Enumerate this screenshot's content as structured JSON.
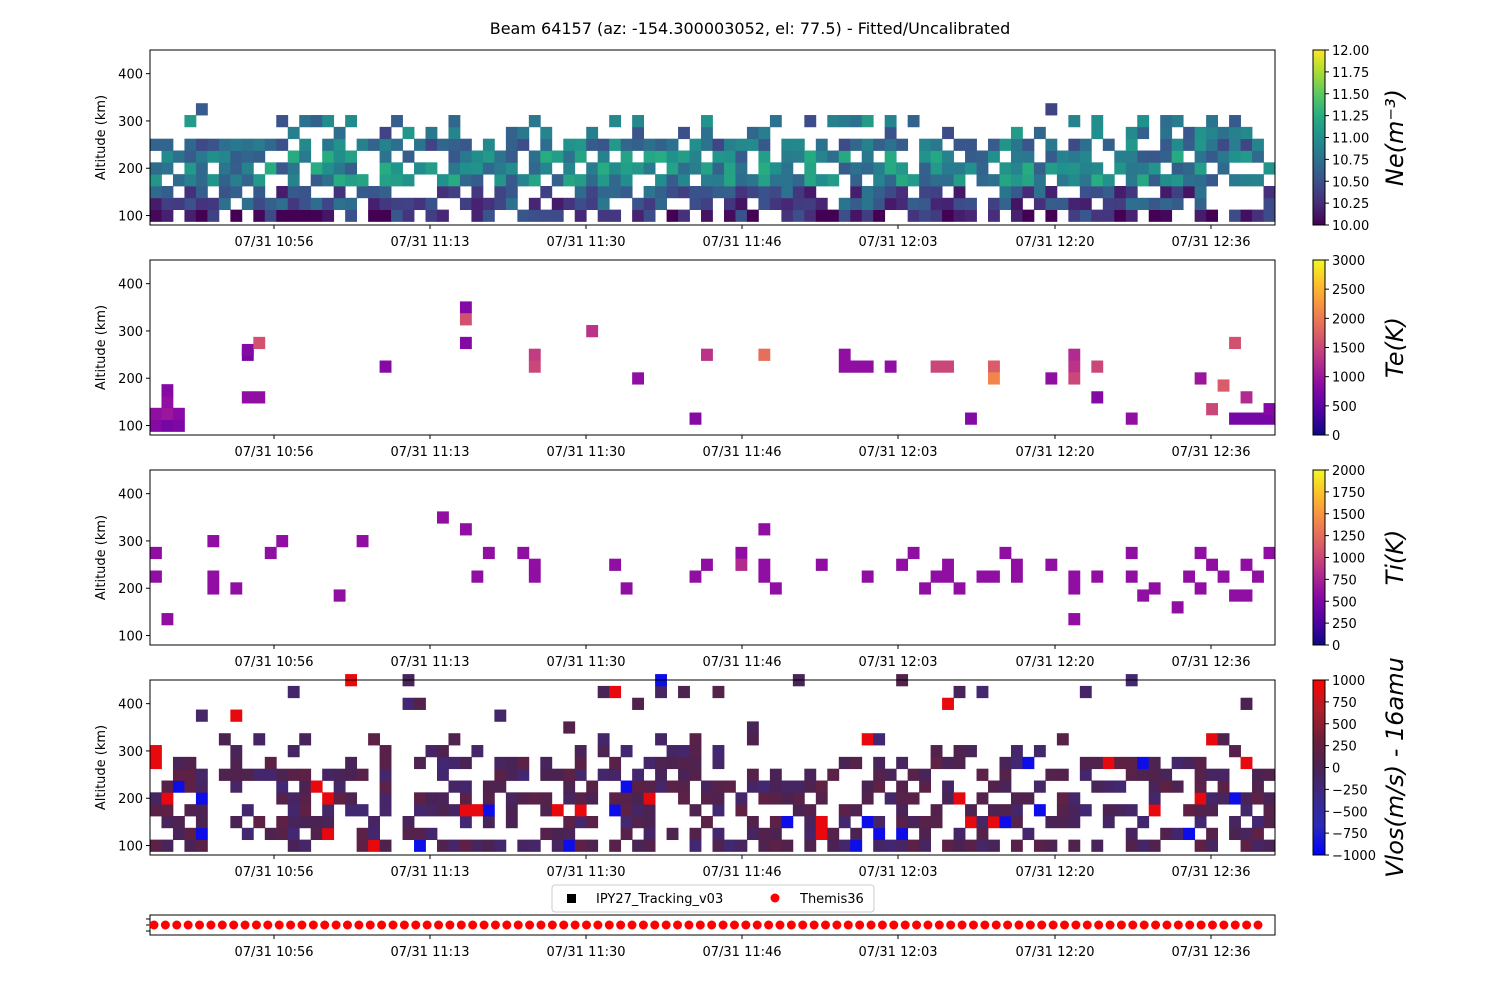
{
  "figure": {
    "title": "Beam 64157 (az: -154.300003052, el: 77.5) - Fitted/Uncalibrated"
  },
  "time_ticks": [
    "07/31 10:56",
    "07/31 11:13",
    "07/31 11:30",
    "07/31 11:46",
    "07/31 12:03",
    "07/31 12:20",
    "07/31 12:36"
  ],
  "legend": {
    "items": [
      {
        "label": "IPY27_Tracking_v03",
        "marker": "square",
        "color": "#000000"
      },
      {
        "label": "Themis36",
        "marker": "circle",
        "color": "#ff0000"
      }
    ]
  },
  "chart_data": [
    {
      "type": "heatmap",
      "name": "Ne",
      "ylabel": "Altitude (km)",
      "ylim": [
        80,
        450
      ],
      "yticks": [
        100,
        200,
        300,
        400
      ],
      "colorbar": {
        "label": "Ne(m^{-3})",
        "range": [
          10.0,
          12.0
        ],
        "ticks": [
          "10.00",
          "10.25",
          "10.50",
          "10.75",
          "11.00",
          "11.25",
          "11.50",
          "11.75",
          "12.00"
        ],
        "colormap": "viridis"
      },
      "time_columns": 98,
      "range_gates": 10,
      "alt_start": 100,
      "alt_step": 25,
      "seed": 11
    },
    {
      "type": "heatmap",
      "name": "Te",
      "ylabel": "Altitude (km)",
      "ylim": [
        80,
        450
      ],
      "yticks": [
        100,
        200,
        300,
        400
      ],
      "colorbar": {
        "label": "Te(K)",
        "range": [
          0,
          3000
        ],
        "ticks": [
          "0",
          "500",
          "1000",
          "1500",
          "2000",
          "2500",
          "3000"
        ],
        "colormap": "plasma"
      },
      "points": [
        [
          0,
          100,
          800
        ],
        [
          1,
          100,
          700
        ],
        [
          2,
          100,
          750
        ],
        [
          0,
          125,
          900
        ],
        [
          1,
          125,
          1000
        ],
        [
          2,
          125,
          850
        ],
        [
          1,
          150,
          900
        ],
        [
          1,
          175,
          800
        ],
        [
          8,
          250,
          700
        ],
        [
          8,
          260,
          800
        ],
        [
          9,
          275,
          1600
        ],
        [
          8,
          160,
          900
        ],
        [
          9,
          160,
          900
        ],
        [
          20,
          225,
          800
        ],
        [
          27,
          350,
          800
        ],
        [
          27,
          325,
          1600
        ],
        [
          27,
          275,
          800
        ],
        [
          33,
          250,
          1400
        ],
        [
          33,
          225,
          1500
        ],
        [
          38,
          300,
          1300
        ],
        [
          42,
          200,
          900
        ],
        [
          47,
          115,
          800
        ],
        [
          48,
          250,
          1300
        ],
        [
          53,
          250,
          1900
        ],
        [
          60,
          250,
          900
        ],
        [
          60,
          225,
          900
        ],
        [
          61,
          225,
          900
        ],
        [
          62,
          225,
          900
        ],
        [
          64,
          225,
          900
        ],
        [
          68,
          225,
          1500
        ],
        [
          69,
          225,
          1500
        ],
        [
          73,
          225,
          1700
        ],
        [
          73,
          200,
          2100
        ],
        [
          71,
          115,
          800
        ],
        [
          78,
          200,
          900
        ],
        [
          80,
          250,
          1200
        ],
        [
          80,
          225,
          1300
        ],
        [
          80,
          200,
          1500
        ],
        [
          82,
          225,
          1500
        ],
        [
          82,
          160,
          800
        ],
        [
          85,
          115,
          900
        ],
        [
          91,
          200,
          1000
        ],
        [
          92,
          135,
          1500
        ],
        [
          93,
          185,
          1700
        ],
        [
          94,
          115,
          700
        ],
        [
          95,
          115,
          700
        ],
        [
          96,
          115,
          700
        ],
        [
          97,
          115,
          700
        ],
        [
          94,
          275,
          1600
        ],
        [
          95,
          160,
          1200
        ],
        [
          97,
          135,
          800
        ]
      ]
    },
    {
      "type": "heatmap",
      "name": "Ti",
      "ylabel": "Altitude (km)",
      "ylim": [
        80,
        450
      ],
      "yticks": [
        100,
        200,
        300,
        400
      ],
      "colorbar": {
        "label": "Ti(K)",
        "range": [
          0,
          2000
        ],
        "ticks": [
          "0",
          "250",
          "500",
          "750",
          "1000",
          "1250",
          "1500",
          "1750",
          "2000"
        ],
        "colormap": "plasma"
      },
      "points": [
        [
          0,
          275,
          600
        ],
        [
          0,
          225,
          600
        ],
        [
          1,
          135,
          600
        ],
        [
          5,
          300,
          600
        ],
        [
          5,
          225,
          600
        ],
        [
          5,
          200,
          600
        ],
        [
          7,
          200,
          600
        ],
        [
          10,
          275,
          600
        ],
        [
          11,
          300,
          600
        ],
        [
          16,
          185,
          600
        ],
        [
          18,
          300,
          600
        ],
        [
          25,
          350,
          600
        ],
        [
          27,
          325,
          600
        ],
        [
          28,
          225,
          600
        ],
        [
          29,
          275,
          600
        ],
        [
          32,
          275,
          600
        ],
        [
          33,
          250,
          600
        ],
        [
          33,
          225,
          600
        ],
        [
          40,
          250,
          600
        ],
        [
          41,
          200,
          600
        ],
        [
          47,
          225,
          600
        ],
        [
          48,
          250,
          600
        ],
        [
          51,
          275,
          600
        ],
        [
          51,
          250,
          800
        ],
        [
          53,
          325,
          600
        ],
        [
          53,
          250,
          600
        ],
        [
          53,
          225,
          600
        ],
        [
          54,
          200,
          600
        ],
        [
          58,
          250,
          600
        ],
        [
          62,
          225,
          600
        ],
        [
          65,
          250,
          600
        ],
        [
          66,
          275,
          600
        ],
        [
          67,
          200,
          600
        ],
        [
          68,
          225,
          600
        ],
        [
          69,
          250,
          600
        ],
        [
          69,
          225,
          600
        ],
        [
          70,
          200,
          600
        ],
        [
          72,
          225,
          600
        ],
        [
          73,
          225,
          600
        ],
        [
          74,
          275,
          600
        ],
        [
          75,
          250,
          600
        ],
        [
          75,
          225,
          600
        ],
        [
          78,
          250,
          600
        ],
        [
          80,
          225,
          600
        ],
        [
          80,
          200,
          600
        ],
        [
          80,
          135,
          600
        ],
        [
          82,
          225,
          600
        ],
        [
          85,
          275,
          600
        ],
        [
          85,
          225,
          600
        ],
        [
          86,
          185,
          600
        ],
        [
          87,
          200,
          600
        ],
        [
          89,
          160,
          600
        ],
        [
          90,
          225,
          600
        ],
        [
          91,
          275,
          600
        ],
        [
          91,
          200,
          600
        ],
        [
          92,
          250,
          600
        ],
        [
          93,
          225,
          600
        ],
        [
          94,
          185,
          600
        ],
        [
          95,
          185,
          600
        ],
        [
          96,
          225,
          600
        ],
        [
          97,
          275,
          600
        ],
        [
          95,
          250,
          600
        ]
      ]
    },
    {
      "type": "heatmap",
      "name": "Vlos",
      "ylabel": "Altitude (km)",
      "ylim": [
        80,
        450
      ],
      "yticks": [
        100,
        200,
        300,
        400
      ],
      "colorbar": {
        "label": "Vlos(m/s) - 16amu",
        "range": [
          -1000,
          1000
        ],
        "ticks": [
          "1000",
          "750",
          "500",
          "250",
          "0",
          "−250",
          "−500",
          "−750",
          "−1000"
        ],
        "colormap": "bwr-dark"
      },
      "time_columns": 98,
      "range_gates": 15,
      "alt_start": 100,
      "alt_step": 25,
      "seed": 29
    }
  ],
  "strip": {
    "markers": 98,
    "marker_color": "#ff0000"
  }
}
